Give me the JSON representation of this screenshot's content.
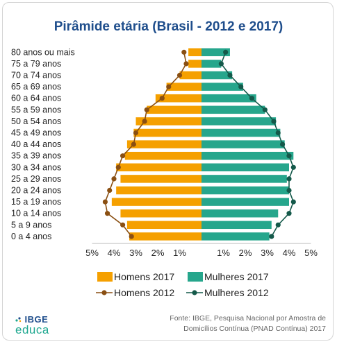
{
  "chart_data": {
    "type": "bar",
    "title": "Pirâmide etária (Brasil - 2012 e 2017)",
    "categories": [
      "0 a 4 anos",
      "5 a 9 anos",
      "10 a 14 anos",
      "15 a 19 anos",
      "20 a 24 anos",
      "25 a 29 anos",
      "30 a 34 anos",
      "35 a 39 anos",
      "40 a 44 anos",
      "45 a 49 anos",
      "50 a 54 anos",
      "55 a 59 anos",
      "60 a 64 anos",
      "65 a 69 anos",
      "70 a 74 anos",
      "75 a 79 anos",
      "80 anos ou mais"
    ],
    "x_ticks": [
      "5%",
      "4%",
      "3%",
      "2%",
      "1%",
      "",
      "1%",
      "2%",
      "3%",
      "4%",
      "5%"
    ],
    "xlim": [
      -5,
      5
    ],
    "series": [
      {
        "name": "Homens 2017",
        "kind": "bar",
        "color": "#f5a000",
        "values": [
          3.3,
          3.4,
          3.7,
          4.1,
          3.9,
          3.7,
          3.9,
          3.5,
          3.4,
          3.1,
          3.0,
          2.5,
          2.1,
          1.6,
          1.0,
          0.6,
          0.6
        ]
      },
      {
        "name": "Mulheres 2017",
        "kind": "bar",
        "color": "#26a68c",
        "values": [
          3.1,
          3.2,
          3.5,
          4.0,
          4.0,
          3.9,
          4.0,
          4.2,
          3.8,
          3.6,
          3.4,
          2.9,
          2.5,
          1.9,
          1.4,
          0.9,
          1.3
        ]
      },
      {
        "name": "Homens 2012",
        "kind": "line",
        "color": "#8a4f12",
        "values": [
          3.2,
          3.6,
          4.3,
          4.4,
          4.2,
          4.0,
          3.8,
          3.6,
          3.1,
          3.0,
          2.6,
          2.5,
          1.8,
          1.5,
          1.0,
          0.7,
          0.8
        ]
      },
      {
        "name": "Mulheres 2012",
        "kind": "line",
        "color": "#14594a",
        "values": [
          3.2,
          3.5,
          4.0,
          4.2,
          4.0,
          4.0,
          4.2,
          4.0,
          3.7,
          3.5,
          3.3,
          2.9,
          2.3,
          1.8,
          1.3,
          0.9,
          1.1
        ]
      }
    ],
    "grid": false,
    "legend_position": "bottom"
  },
  "footer": {
    "logo_top": "IBGE",
    "logo_bottom": "educa",
    "source_line1": "Fonte: IBGE, Pesquisa Nacional por Amostra de",
    "source_line2": "Domicílios Contínua (PNAD Contínua) 2017"
  }
}
